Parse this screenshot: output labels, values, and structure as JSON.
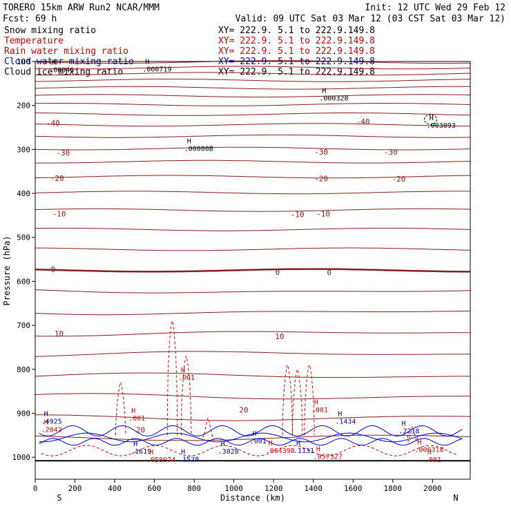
{
  "header": {
    "model": "TORERO  15km ARW   Run2    NCAR/MMM",
    "init": "Init: 12 UTC Wed 29 Feb 12",
    "fcst": "Fcst:   69 h",
    "valid": "Valid: 09 UTC Sat 03 Mar 12 (03 CST Sat 03 Mar 12)"
  },
  "legend": [
    {
      "name": "Snow mixing ratio",
      "color": "#000000",
      "xy": "XY= 222.9.  5.1 to 222.9.149.8"
    },
    {
      "name": "Temperature",
      "color": "#cc0000",
      "xy": "XY= 222.9.  5.1 to 222.9.149.8"
    },
    {
      "name": "Rain water mixing ratio",
      "color": "#cc0000",
      "xy": "XY= 222.9.  5.1 to 222.9.149.8"
    },
    {
      "name": "Cloud water mixing ratio",
      "color": "#0000cc",
      "xy": "XY= 222.9.  5.1 to 222.9.149.8"
    },
    {
      "name": "Cloud ice mixing ratio",
      "color": "#000000",
      "xy": "XY= 222.9.  5.1 to 222.9.149.8"
    }
  ],
  "chart_data": {
    "type": "cross-section contour",
    "xlabel": "Distance (km)",
    "ylabel": "Pressure (hPa)",
    "xlim": [
      0,
      2190
    ],
    "ylim": [
      1050,
      100
    ],
    "xticks": [
      0,
      200,
      400,
      600,
      800,
      1000,
      1200,
      1400,
      1600,
      1800,
      2000
    ],
    "yticks": [
      100,
      200,
      300,
      400,
      500,
      600,
      700,
      800,
      900,
      1000
    ],
    "endpoints": {
      "left": "S",
      "right": "N"
    },
    "colors": {
      "temperature": "#8b1a1a",
      "rain": "#dd0000",
      "cloud_water": "#0000cc",
      "snow": "#000000",
      "ground": "#000000"
    },
    "isotherm_pressures": [
      101,
      114,
      128,
      143,
      160,
      178,
      198,
      220,
      244,
      270,
      298,
      328,
      362,
      398,
      438,
      482,
      527,
      575,
      622,
      670,
      718,
      765,
      815,
      862,
      910,
      955
    ],
    "zero_isotherm_p": 575,
    "ground_pressure": 1008,
    "isotherm_labels": [
      {
        "text": "-40",
        "x": 90,
        "p": 240
      },
      {
        "text": "-40",
        "x": 1650,
        "p": 237
      },
      {
        "text": "-30",
        "x": 140,
        "p": 307
      },
      {
        "text": "-30",
        "x": 1440,
        "p": 306
      },
      {
        "text": "-30",
        "x": 1790,
        "p": 306
      },
      {
        "text": "-20",
        "x": 110,
        "p": 365
      },
      {
        "text": "-20",
        "x": 1440,
        "p": 366
      },
      {
        "text": "-20",
        "x": 1830,
        "p": 367
      },
      {
        "text": "-10",
        "x": 120,
        "p": 446
      },
      {
        "text": "-10",
        "x": 1320,
        "p": 448
      },
      {
        "text": "-10",
        "x": 1450,
        "p": 446
      },
      {
        "text": "0",
        "x": 90,
        "p": 573
      },
      {
        "text": "0",
        "x": 1220,
        "p": 579
      },
      {
        "text": "0",
        "x": 1480,
        "p": 580
      },
      {
        "text": "10",
        "x": 120,
        "p": 719
      },
      {
        "text": "10",
        "x": 1230,
        "p": 725
      },
      {
        "text": "20",
        "x": 530,
        "p": 938
      },
      {
        "text": "20",
        "x": 1050,
        "p": 892
      }
    ],
    "maxima": [
      {
        "value": ".00046",
        "x": 70,
        "p": 120,
        "color": "#000000"
      },
      {
        "value": ".000719",
        "x": 540,
        "p": 118,
        "color": "#000000"
      },
      {
        "value": ".000328",
        "x": 1430,
        "p": 184,
        "color": "#000000"
      },
      {
        "value": ".003093",
        "x": 1970,
        "p": 246,
        "color": "#000000"
      },
      {
        "value": ".00000B",
        "x": 750,
        "p": 299,
        "color": "#000000"
      },
      {
        "value": ".001",
        "x": 720,
        "p": 819,
        "color": "#dd0000"
      },
      {
        "value": ".001",
        "x": 1390,
        "p": 893,
        "color": "#dd0000"
      },
      {
        "value": ".001",
        "x": 470,
        "p": 912,
        "color": "#dd0000"
      },
      {
        "value": ".4925",
        "x": 30,
        "p": 919,
        "color": "#0000cc"
      },
      {
        "value": ".2042",
        "x": 30,
        "p": 938,
        "color": "#dd0000"
      },
      {
        "value": ".1619",
        "x": 480,
        "p": 987,
        "color": "#0000cc"
      },
      {
        "value": ".058974",
        "x": 560,
        "p": 1006,
        "color": "#dd0000"
      },
      {
        "value": ".1528",
        "x": 720,
        "p": 1005,
        "color": "#0000cc"
      },
      {
        "value": ".3028",
        "x": 920,
        "p": 987,
        "color": "#0000cc"
      },
      {
        "value": ".001",
        "x": 1080,
        "p": 964,
        "color": "#0000cc"
      },
      {
        "value": ".064398",
        "x": 1160,
        "p": 986,
        "color": "#dd0000"
      },
      {
        "value": ".1131",
        "x": 1300,
        "p": 986,
        "color": "#0000cc"
      },
      {
        "value": ".057327",
        "x": 1400,
        "p": 999,
        "color": "#dd0000"
      },
      {
        "value": ".1434",
        "x": 1510,
        "p": 919,
        "color": "#0000cc"
      },
      {
        "value": ".2218",
        "x": 1830,
        "p": 941,
        "color": "#0000cc"
      },
      {
        "value": ".006318",
        "x": 1910,
        "p": 983,
        "color": "#dd0000"
      },
      {
        "value": ".001",
        "x": 1960,
        "p": 1006,
        "color": "#dd0000"
      }
    ]
  }
}
